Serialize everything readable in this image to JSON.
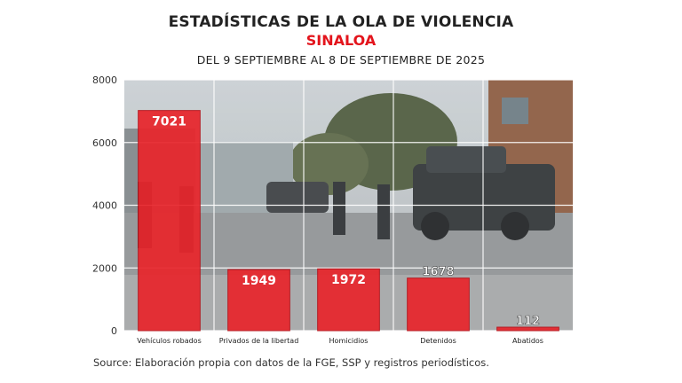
{
  "header": {
    "title": "ESTADÍSTICAS DE LA OLA DE VIOLENCIA",
    "subtitle": "SINALOA",
    "period": "DEL 9 SEPTIEMBRE AL 8 DE SEPTIEMBRE DE 2025"
  },
  "footer": {
    "source": "Source: Elaboración propia con datos de la FGE, SSP y registros periodísticos."
  },
  "colors": {
    "bar": "#e8262c",
    "bar_edge": "#b5121a",
    "accent": "#e3141c"
  },
  "chart_data": {
    "type": "bar",
    "categories": [
      "Vehículos robados",
      "Privados de la libertad",
      "Homicidios",
      "Detenidos",
      "Abatidos"
    ],
    "values": [
      7021,
      1949,
      1972,
      1678,
      112
    ],
    "title": "ESTADÍSTICAS DE LA OLA DE VIOLENCIA",
    "subtitle": "SINALOA",
    "xlabel": "",
    "ylabel": "",
    "ylim": [
      0,
      8000
    ],
    "yticks": [
      0,
      2000,
      4000,
      6000,
      8000
    ],
    "grid": true,
    "legend": "none"
  }
}
